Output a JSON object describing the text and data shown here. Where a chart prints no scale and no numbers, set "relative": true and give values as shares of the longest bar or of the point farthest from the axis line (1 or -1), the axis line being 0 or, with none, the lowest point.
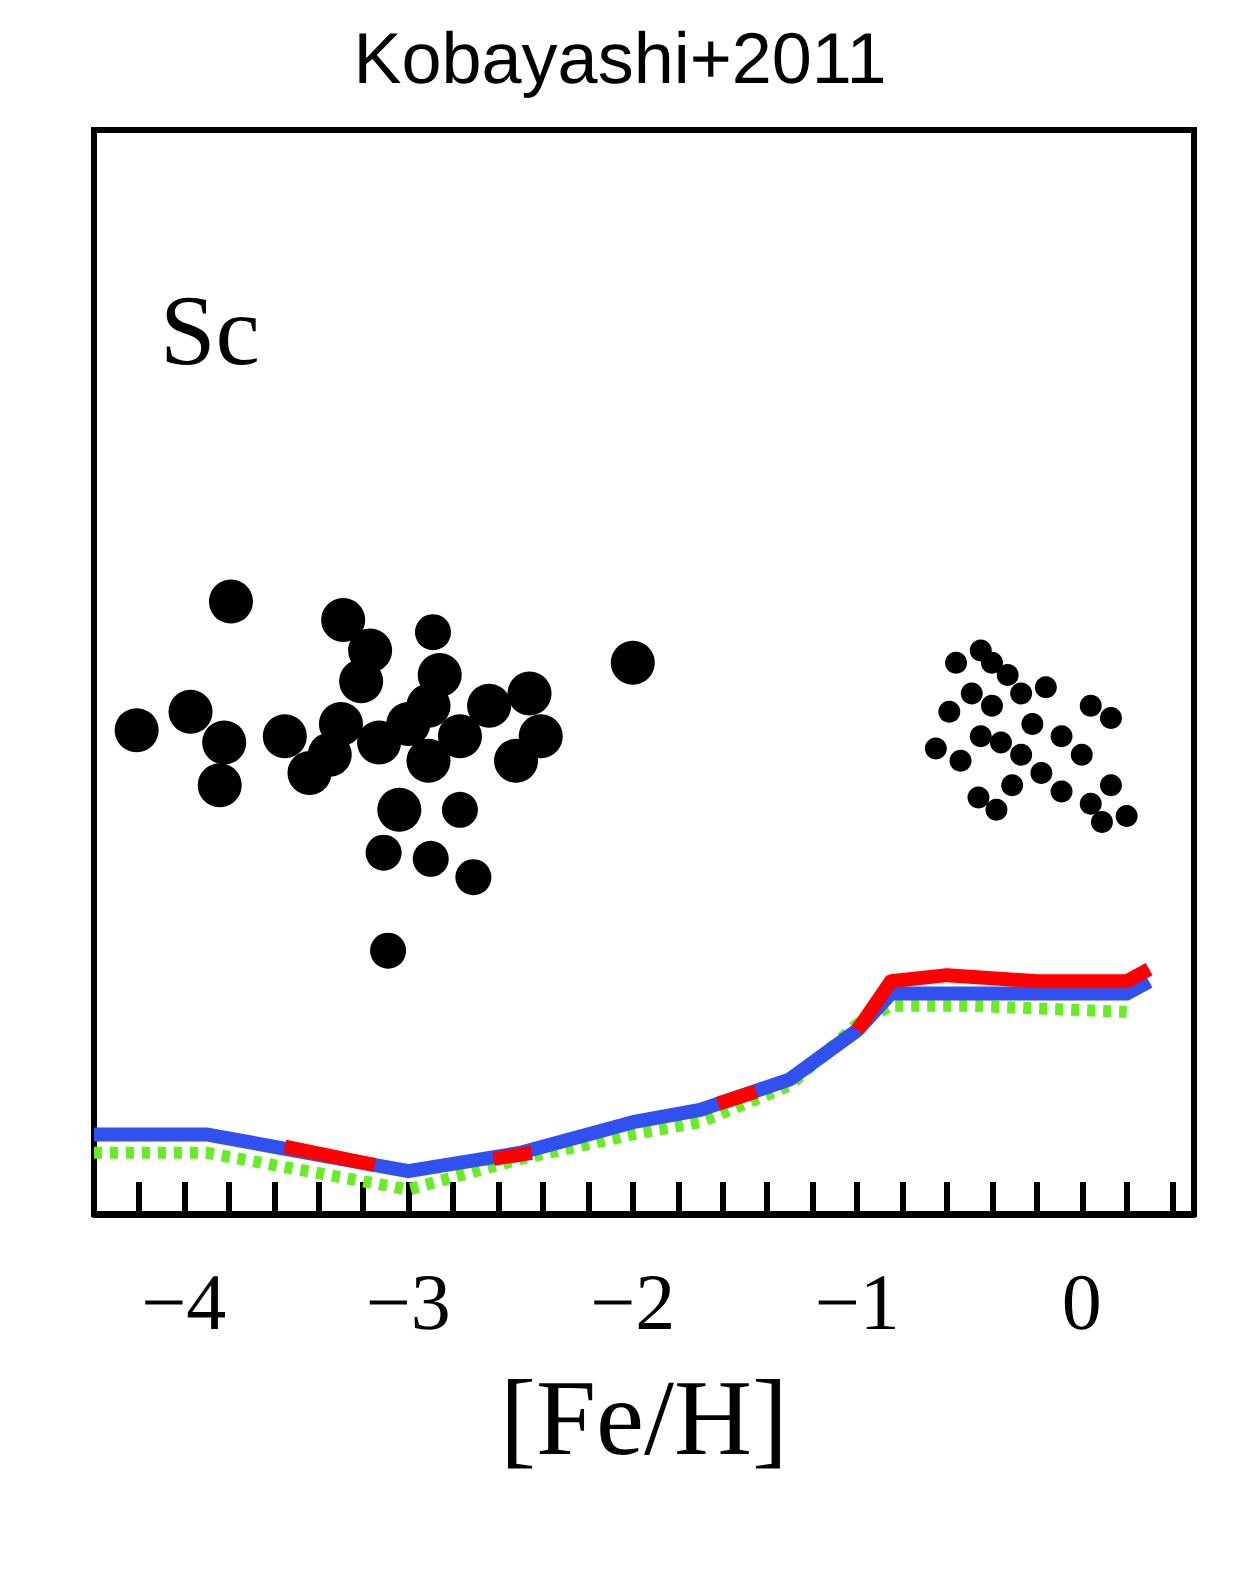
{
  "chart_data": {
    "type": "line",
    "title": "Kobayashi+2011",
    "xlabel": "[Fe/H]",
    "annotations": [
      "Sc"
    ],
    "relative": true,
    "grid": false,
    "line_style": "solid",
    "xlim": [
      -4.4,
      0.5
    ],
    "xticks": [
      {
        "value": -4.2,
        "label": null
      },
      {
        "value": -4,
        "label": "−4"
      },
      {
        "value": -3.8,
        "label": null
      },
      {
        "value": -3.6,
        "label": null
      },
      {
        "value": -3.4,
        "label": null
      },
      {
        "value": -3.2,
        "label": null
      },
      {
        "value": -3,
        "label": "−3"
      },
      {
        "value": -2.8,
        "label": null
      },
      {
        "value": -2.6,
        "label": null
      },
      {
        "value": -2.4,
        "label": null
      },
      {
        "value": -2.2,
        "label": null
      },
      {
        "value": -2,
        "label": "−2"
      },
      {
        "value": -1.8,
        "label": null
      },
      {
        "value": -1.6,
        "label": null
      },
      {
        "value": -1.4,
        "label": null
      },
      {
        "value": -1.2,
        "label": null
      },
      {
        "value": -1,
        "label": "−1"
      },
      {
        "value": -0.8,
        "label": null
      },
      {
        "value": -0.6,
        "label": null
      },
      {
        "value": -0.4,
        "label": null
      },
      {
        "value": -0.2,
        "label": null
      },
      0,
      {
        "value": 0.2,
        "label": null
      },
      {
        "value": 0.4,
        "label": null
      }
    ],
    "series": [
      {
        "type": "scatter",
        "marker": "circle",
        "color": "#000000",
        "x": [
          -3.79,
          -4.21,
          -3.97,
          -3.84,
          -3.82,
          -3.55,
          -3.44,
          -3.29,
          -3.17,
          -3.21,
          -3.3,
          -3.35,
          -3.13,
          -3.0,
          -2.91,
          -2.77,
          -2.64,
          -2.46,
          -2.41,
          -2.52,
          -2.91,
          -3.04,
          -2.0,
          -2.86
        ],
        "values": [
          1.0,
          0.79,
          0.82,
          0.7,
          0.77,
          0.78,
          0.72,
          0.97,
          0.92,
          0.87,
          0.8,
          0.75,
          0.77,
          0.8,
          0.83,
          0.78,
          0.83,
          0.85,
          0.78,
          0.74,
          0.74,
          0.66,
          0.9,
          0.88
        ]
      },
      {
        "type": "scatter",
        "marker": "circle",
        "color": "#000000",
        "x": [
          -2.89,
          -2.77,
          -3.11,
          -2.9,
          -2.71,
          -3.09
        ],
        "values": [
          0.95,
          0.66,
          0.59,
          0.58,
          0.55,
          0.43
        ]
      },
      {
        "type": "scatter",
        "marker": "circle",
        "color": "#000000",
        "x": [
          -0.45,
          -0.4,
          -0.33,
          -0.56,
          -0.59,
          -0.65,
          -0.49,
          -0.4,
          -0.27,
          -0.16,
          0.04,
          0.13,
          -0.54,
          -0.45,
          -0.36,
          -0.22,
          -0.09,
          0.0,
          -0.18,
          -0.31,
          -0.46,
          -0.38,
          -0.09,
          0.04,
          0.13,
          0.2,
          0.09,
          -0.27
        ],
        "values": [
          0.92,
          0.9,
          0.88,
          0.9,
          0.82,
          0.76,
          0.85,
          0.83,
          0.85,
          0.86,
          0.83,
          0.81,
          0.74,
          0.78,
          0.77,
          0.8,
          0.78,
          0.75,
          0.72,
          0.7,
          0.68,
          0.66,
          0.69,
          0.67,
          0.7,
          0.65,
          0.64,
          0.75
        ]
      },
      {
        "color": "#ff0000",
        "x": [
          -3.55,
          -3.15,
          -3.0,
          -2.62,
          -2.45,
          -2.0,
          -1.62,
          -1.45,
          -1.2,
          -1.0,
          -0.85,
          -0.6,
          -0.2,
          0.2,
          0.3
        ],
        "values": [
          0.11,
          0.08,
          null,
          0.09,
          0.1,
          null,
          0.18,
          0.2,
          null,
          0.3,
          0.38,
          0.39,
          0.38,
          0.38,
          0.4
        ]
      },
      {
        "color": "#3050f0",
        "x": [
          -4.4,
          -3.9,
          -3.0,
          -2.5,
          -2.0,
          -1.7,
          -1.3,
          -1.0,
          -0.85,
          -0.6,
          -0.2,
          0.2,
          0.3
        ],
        "values": [
          0.13,
          0.13,
          0.07,
          0.1,
          0.15,
          0.17,
          0.22,
          0.3,
          0.36,
          0.36,
          0.36,
          0.36,
          0.38
        ]
      },
      {
        "line_style": "dotted",
        "color": "#66ee22",
        "x": [
          -4.4,
          -3.9,
          -3.0,
          -2.5,
          -2.0,
          -1.7,
          -1.3,
          -1.0,
          -0.85,
          -0.5,
          0.2
        ],
        "values": [
          0.1,
          0.1,
          0.04,
          0.09,
          0.13,
          0.15,
          0.21,
          0.31,
          0.34,
          0.34,
          0.33
        ]
      }
    ]
  }
}
